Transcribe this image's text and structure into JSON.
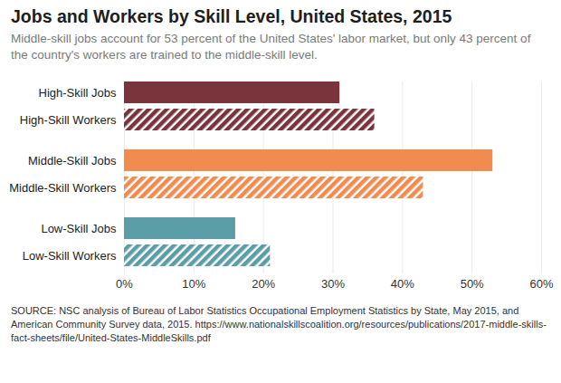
{
  "chart_data": {
    "type": "bar",
    "orientation": "horizontal",
    "title": "Jobs and Workers by Skill Level, United States, 2015",
    "subtitle": "Middle-skill jobs account for 53 percent of the United States' labor market, but only 43 percent of the country's workers are trained to the middle-skill level.",
    "source": "SOURCE: NSC analysis of Bureau of Labor Statistics Occupational Employment Statistics by State, May 2015, and American Community Survey data, 2015. https://www.nationalskillscoalition.org/resources/publications/2017-middle-skills-fact-sheets/file/United-States-MiddleSkills.pdf",
    "categories": [
      "High-Skill Jobs",
      "High-Skill Workers",
      "Middle-Skill Jobs",
      "Middle-Skill Workers",
      "Low-Skill Jobs",
      "Low-Skill Workers"
    ],
    "values": [
      31,
      36,
      53,
      43,
      16,
      21
    ],
    "colors": [
      "#7a343c",
      "#7a343c",
      "#f28b50",
      "#f28b50",
      "#5b9ea7",
      "#5b9ea7"
    ],
    "xlim": [
      0,
      60
    ],
    "xticks": [
      {
        "value": 0,
        "label": "0%"
      },
      {
        "value": 10,
        "label": "10%"
      },
      {
        "value": 20,
        "label": "20%"
      },
      {
        "value": 30,
        "label": "30%"
      },
      {
        "value": 40,
        "label": "40%"
      },
      {
        "value": 50,
        "label": "50%"
      },
      {
        "value": 60,
        "label": "60%"
      }
    ],
    "grid": true
  }
}
